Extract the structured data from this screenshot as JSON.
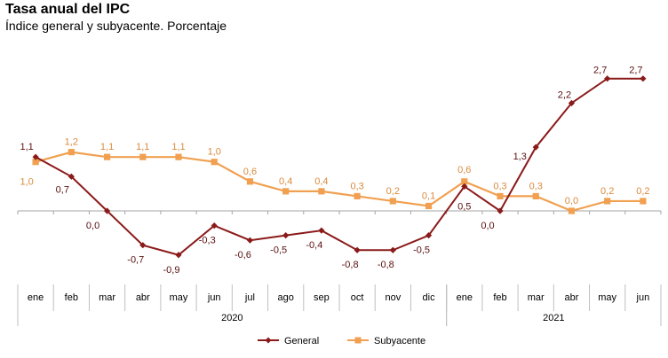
{
  "header": {
    "title": "Tasa anual del IPC",
    "subtitle": "Índice general y subyacente. Porcentaje"
  },
  "chart_data": {
    "type": "line",
    "title": "Tasa anual del IPC",
    "subtitle": "Índice general y subyacente. Porcentaje",
    "categories": [
      "ene",
      "feb",
      "mar",
      "abr",
      "may",
      "jun",
      "jul",
      "ago",
      "sep",
      "oct",
      "nov",
      "dic",
      "ene",
      "feb",
      "mar",
      "abr",
      "may",
      "jun"
    ],
    "year_groups": [
      {
        "label": "2020",
        "start": 0,
        "end": 11
      },
      {
        "label": "2021",
        "start": 12,
        "end": 17
      }
    ],
    "ylim": [
      -1.0,
      2.9
    ],
    "series": [
      {
        "name": "General",
        "color": "#8b1a1a",
        "marker": "diamond",
        "values": [
          1.1,
          0.7,
          0.0,
          -0.7,
          -0.9,
          -0.3,
          -0.6,
          -0.5,
          -0.4,
          -0.8,
          -0.8,
          -0.5,
          0.5,
          0.0,
          1.3,
          2.2,
          2.7,
          2.7
        ],
        "labels": [
          "1,1",
          "0,7",
          "0,0",
          "-0,7",
          "-0,9",
          "-0,3",
          "-0,6",
          "-0,5",
          "-0,4",
          "-0,8",
          "-0,8",
          "-0,5",
          "0,5",
          "0,0",
          "1,3",
          "2,2",
          "2,7",
          "2,7"
        ]
      },
      {
        "name": "Subyacente",
        "color": "#f0a050",
        "marker": "square",
        "values": [
          1.0,
          1.2,
          1.1,
          1.1,
          1.1,
          1.0,
          0.6,
          0.4,
          0.4,
          0.3,
          0.2,
          0.1,
          0.6,
          0.3,
          0.3,
          0.0,
          0.2,
          0.2
        ],
        "labels": [
          "1,0",
          "1,2",
          "1,1",
          "1,1",
          "1,1",
          "1,0",
          "0,6",
          "0,4",
          "0,4",
          "0,3",
          "0,2",
          "0,1",
          "0,6",
          "0,3",
          "0,3",
          "0,0",
          "0,2",
          "0,2"
        ]
      }
    ],
    "legend": [
      "General",
      "Subyacente"
    ],
    "legend_position": "bottom",
    "grid": false
  }
}
